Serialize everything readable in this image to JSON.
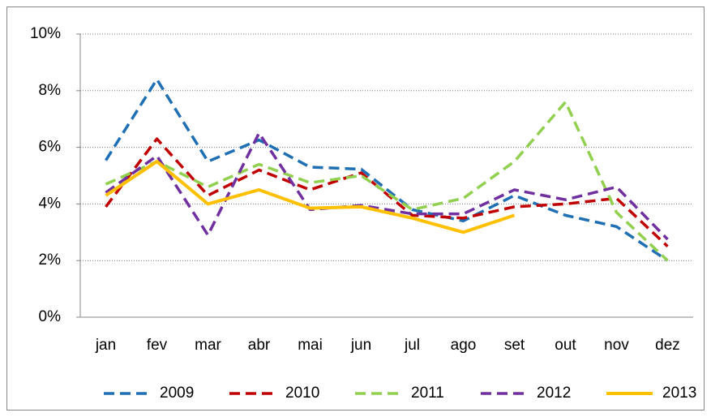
{
  "chart_data": {
    "type": "line",
    "categories": [
      "jan",
      "fev",
      "mar",
      "abr",
      "mai",
      "jun",
      "jul",
      "ago",
      "set",
      "out",
      "nov",
      "dez"
    ],
    "series": [
      {
        "name": "2009",
        "color": "#1f6fb4",
        "dashed": true,
        "values": [
          5.54,
          8.4,
          5.5,
          6.26,
          5.3,
          5.23,
          3.8,
          3.4,
          4.3,
          3.6,
          3.2,
          2.0
        ]
      },
      {
        "name": "2010",
        "color": "#c00000",
        "dashed": true,
        "values": [
          3.9,
          6.3,
          4.3,
          5.2,
          4.5,
          5.1,
          3.6,
          3.5,
          3.9,
          4.0,
          4.2,
          2.5
        ]
      },
      {
        "name": "2011",
        "color": "#92d050",
        "dashed": true,
        "values": [
          4.7,
          5.5,
          4.6,
          5.4,
          4.75,
          5.0,
          3.8,
          4.2,
          5.5,
          7.6,
          3.7,
          2.0
        ]
      },
      {
        "name": "2012",
        "color": "#7030a0",
        "dashed": true,
        "values": [
          4.4,
          5.7,
          2.9,
          6.5,
          3.8,
          3.95,
          3.65,
          3.65,
          4.5,
          4.15,
          4.6,
          2.75
        ]
      },
      {
        "name": "2013",
        "color": "#ffc000",
        "dashed": false,
        "values": [
          4.3,
          5.5,
          4.0,
          4.5,
          3.85,
          3.9,
          3.5,
          3.0,
          3.6,
          null,
          null,
          null
        ]
      }
    ],
    "ylim": [
      0,
      10
    ],
    "yticks": [
      {
        "value": 0,
        "label": "0%"
      },
      {
        "value": 2,
        "label": "2%"
      },
      {
        "value": 4,
        "label": "4%"
      },
      {
        "value": 6,
        "label": "6%"
      },
      {
        "value": 8,
        "label": "8%"
      },
      {
        "value": 10,
        "label": "10%"
      }
    ],
    "grid": true,
    "legend": "bottom"
  }
}
